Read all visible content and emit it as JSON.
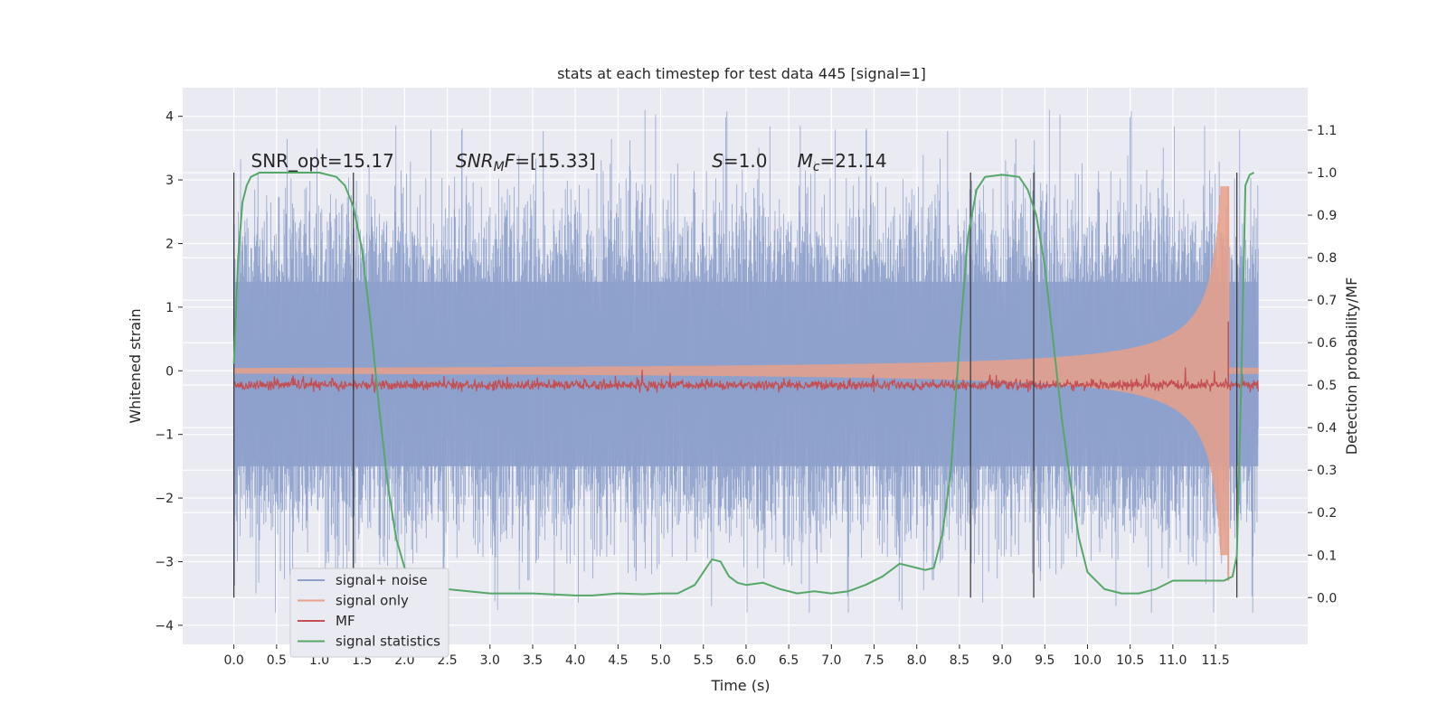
{
  "chart_data": {
    "type": "line",
    "title": "stats at each timestep for test data 445 [signal=1]",
    "xlabel": "Time (s)",
    "ylabel": "Whitened strain",
    "y2label": "Detection probability/MF",
    "xlim": [
      -0.6,
      12.58
    ],
    "ylim": [
      -4.3,
      4.45
    ],
    "y2lim": [
      -0.11,
      1.2
    ],
    "x_ticks": [
      "0.0",
      "0.5",
      "1.0",
      "1.5",
      "2.0",
      "2.5",
      "3.0",
      "3.5",
      "4.0",
      "4.5",
      "5.0",
      "5.5",
      "6.0",
      "6.5",
      "7.0",
      "7.5",
      "8.0",
      "8.5",
      "9.0",
      "9.5",
      "10.0",
      "10.5",
      "11.0",
      "11.5"
    ],
    "y_ticks": [
      "4",
      "3",
      "2",
      "1",
      "0",
      "−1",
      "−2",
      "−3",
      "−4"
    ],
    "y2_ticks": [
      "1.1",
      "1.0",
      "0.9",
      "0.8",
      "0.7",
      "0.6",
      "0.5",
      "0.4",
      "0.3",
      "0.2",
      "0.1",
      "0.0"
    ],
    "grid": true,
    "legend_position": "lower-left",
    "colors": {
      "noise": "#8da0cb",
      "signal": "#e8a088",
      "mf": "#c44e52",
      "stats": "#55a868",
      "background": "#eaeaf2",
      "vlines": "#333333"
    },
    "series": [
      {
        "name": "signal+ noise",
        "kind": "noise",
        "x_range": [
          0.0,
          12.0
        ],
        "typical_band": [
          -1.5,
          1.4
        ],
        "peak_band": [
          -3.8,
          4.1
        ]
      },
      {
        "name": "signal only",
        "kind": "chirp",
        "x_range": [
          0.0,
          12.0
        ],
        "peak_time": 11.65,
        "peak_amplitude": 2.9
      },
      {
        "name": "MF",
        "kind": "flat",
        "x_range": [
          0.0,
          12.0
        ],
        "level": 0.5,
        "spike_time": 11.65,
        "spike_value": 0.65
      },
      {
        "name": "signal statistics",
        "kind": "line",
        "x": [
          0.0,
          0.05,
          0.1,
          0.15,
          0.2,
          0.3,
          0.5,
          0.8,
          1.0,
          1.1,
          1.2,
          1.3,
          1.4,
          1.5,
          1.6,
          1.7,
          1.8,
          1.9,
          2.0,
          2.2,
          2.5,
          3.0,
          3.5,
          4.0,
          4.2,
          4.5,
          4.8,
          5.0,
          5.2,
          5.4,
          5.5,
          5.6,
          5.7,
          5.8,
          5.9,
          6.0,
          6.2,
          6.4,
          6.6,
          6.8,
          7.0,
          7.2,
          7.4,
          7.6,
          7.8,
          8.0,
          8.1,
          8.2,
          8.3,
          8.4,
          8.5,
          8.6,
          8.7,
          8.8,
          9.0,
          9.2,
          9.3,
          9.4,
          9.5,
          9.6,
          9.7,
          9.8,
          9.9,
          10.0,
          10.2,
          10.4,
          10.6,
          10.8,
          11.0,
          11.2,
          11.4,
          11.6,
          11.65,
          11.7,
          11.75,
          11.8,
          11.85,
          11.9,
          11.95
        ],
        "y": [
          0.55,
          0.8,
          0.93,
          0.97,
          0.99,
          1.0,
          1.0,
          1.0,
          1.0,
          0.995,
          0.99,
          0.97,
          0.92,
          0.82,
          0.65,
          0.45,
          0.27,
          0.14,
          0.07,
          0.03,
          0.02,
          0.01,
          0.01,
          0.005,
          0.005,
          0.01,
          0.008,
          0.01,
          0.01,
          0.03,
          0.06,
          0.09,
          0.085,
          0.05,
          0.035,
          0.03,
          0.035,
          0.02,
          0.01,
          0.015,
          0.01,
          0.015,
          0.03,
          0.05,
          0.08,
          0.07,
          0.065,
          0.07,
          0.15,
          0.3,
          0.6,
          0.85,
          0.96,
          0.99,
          0.995,
          0.99,
          0.96,
          0.9,
          0.78,
          0.6,
          0.42,
          0.27,
          0.14,
          0.06,
          0.02,
          0.01,
          0.01,
          0.02,
          0.04,
          0.04,
          0.04,
          0.04,
          0.045,
          0.05,
          0.1,
          0.5,
          0.97,
          0.995,
          1.0
        ]
      }
    ],
    "vlines": [
      0.0,
      1.4,
      8.63,
      9.37,
      11.75
    ],
    "vlines_span": [
      0.0,
      1.0
    ],
    "annotations": [
      {
        "text": "SNR_opt=15.17",
        "x": 0.2,
        "y": 3.2
      },
      {
        "parts": [
          {
            "t": "SNR",
            "it": true
          },
          {
            "t": "M",
            "it": true,
            "sub": true
          },
          {
            "t": "F",
            "it": true
          },
          {
            "t": "=[15.33]",
            "it": false
          }
        ],
        "x": 2.6,
        "y": 3.2
      },
      {
        "parts": [
          {
            "t": "S",
            "it": true
          },
          {
            "t": "=1.0",
            "it": false
          }
        ],
        "x": 5.6,
        "y": 3.2
      },
      {
        "parts": [
          {
            "t": "M",
            "it": true
          },
          {
            "t": "c",
            "it": true,
            "sub": true
          },
          {
            "t": "=21.14",
            "it": false
          }
        ],
        "x": 6.6,
        "y": 3.2
      }
    ]
  }
}
